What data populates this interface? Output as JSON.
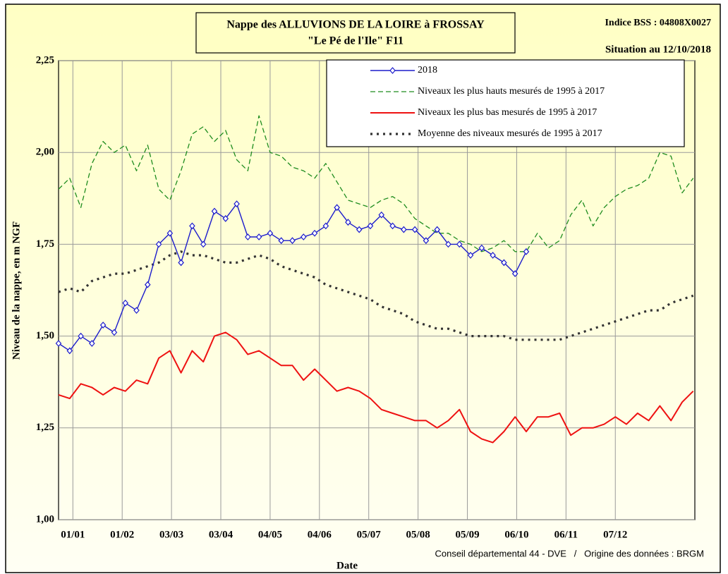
{
  "chart_data": {
    "type": "line",
    "title": "Nappe des ALLUVIONS DE LA LOIRE à FROSSAY",
    "subtitle": "\"Le Pé de l'Ile\" F11",
    "station_id": "Indice BSS : 04808X0027",
    "situation": "Situation au 12/10/2018",
    "y_label": "Niveau de la nappe, en m NGF",
    "x_label": "Date",
    "source": "Conseil départemental 44 - DVE   /   Origine des données : BRGM",
    "grid": true,
    "legend": "upper right",
    "xlim": [
      0,
      400
    ],
    "xticks": [
      {
        "value": 9,
        "label": "01/01"
      },
      {
        "value": 40,
        "label": "01/02"
      },
      {
        "value": 71,
        "label": "03/03"
      },
      {
        "value": 102,
        "label": "03/04"
      },
      {
        "value": 133,
        "label": "04/05"
      },
      {
        "value": 164,
        "label": "04/06"
      },
      {
        "value": 195,
        "label": "05/07"
      },
      {
        "value": 226,
        "label": "05/08"
      },
      {
        "value": 257,
        "label": "05/09"
      },
      {
        "value": 288,
        "label": "06/10"
      },
      {
        "value": 319,
        "label": "06/11"
      },
      {
        "value": 350,
        "label": "07/12"
      }
    ],
    "ylim": [
      1,
      2.25
    ],
    "yticks": [
      {
        "value": 1,
        "label": "1,00"
      },
      {
        "value": 1.25,
        "label": "1,25"
      },
      {
        "value": 1.5,
        "label": "1,50"
      },
      {
        "value": 1.75,
        "label": "1,75"
      },
      {
        "value": 2,
        "label": "2,00"
      },
      {
        "value": 2.25,
        "label": "2,25"
      }
    ],
    "x": [
      0,
      7,
      14,
      21,
      28,
      35,
      42,
      49,
      56,
      63,
      70,
      77,
      84,
      91,
      98,
      105,
      112,
      119,
      126,
      133,
      140,
      147,
      154,
      161,
      168,
      175,
      182,
      189,
      196,
      203,
      210,
      217,
      224,
      231,
      238,
      245,
      252,
      259,
      266,
      273,
      280,
      287,
      294,
      301,
      308,
      315,
      322,
      329,
      336,
      343,
      350,
      357,
      364,
      371,
      378,
      385,
      392,
      399
    ],
    "series": [
      {
        "name": "2018",
        "color": "#1c1ccc",
        "style": "solid",
        "marker": "diamond",
        "values": [
          1.48,
          1.46,
          1.5,
          1.48,
          1.53,
          1.51,
          1.59,
          1.57,
          1.64,
          1.75,
          1.78,
          1.7,
          1.8,
          1.75,
          1.84,
          1.82,
          1.86,
          1.77,
          1.77,
          1.78,
          1.76,
          1.76,
          1.77,
          1.78,
          1.8,
          1.85,
          1.81,
          1.79,
          1.8,
          1.83,
          1.8,
          1.79,
          1.79,
          1.76,
          1.79,
          1.75,
          1.75,
          1.72,
          1.74,
          1.72,
          1.7,
          1.67,
          1.73,
          null,
          null,
          null,
          null,
          null,
          null,
          null,
          null,
          null,
          null,
          null,
          null,
          null,
          null,
          null
        ]
      },
      {
        "name": "Niveaux les plus hauts mesurés de 1995 à 2017",
        "color": "#1e8c1e",
        "style": "dashed",
        "values": [
          1.9,
          1.93,
          1.85,
          1.97,
          2.03,
          2.0,
          2.02,
          1.95,
          2.02,
          1.9,
          1.87,
          1.95,
          2.05,
          2.07,
          2.03,
          2.06,
          1.98,
          1.95,
          2.1,
          2.0,
          1.99,
          1.96,
          1.95,
          1.93,
          1.97,
          1.92,
          1.87,
          1.86,
          1.85,
          1.87,
          1.88,
          1.86,
          1.82,
          1.8,
          1.78,
          1.78,
          1.76,
          1.75,
          1.73,
          1.74,
          1.76,
          1.73,
          1.73,
          1.78,
          1.74,
          1.76,
          1.83,
          1.87,
          1.8,
          1.85,
          1.88,
          1.9,
          1.91,
          1.93,
          2.0,
          1.99,
          1.89,
          1.93
        ]
      },
      {
        "name": "Niveaux les plus bas mesurés de 1995 à 2017",
        "color": "#ee1111",
        "style": "solid",
        "values": [
          1.34,
          1.33,
          1.37,
          1.36,
          1.34,
          1.36,
          1.35,
          1.38,
          1.37,
          1.44,
          1.46,
          1.4,
          1.46,
          1.43,
          1.5,
          1.51,
          1.49,
          1.45,
          1.46,
          1.44,
          1.42,
          1.42,
          1.38,
          1.41,
          1.38,
          1.35,
          1.36,
          1.35,
          1.33,
          1.3,
          1.29,
          1.28,
          1.27,
          1.27,
          1.25,
          1.27,
          1.3,
          1.24,
          1.22,
          1.21,
          1.24,
          1.28,
          1.24,
          1.28,
          1.28,
          1.29,
          1.23,
          1.25,
          1.25,
          1.26,
          1.28,
          1.26,
          1.29,
          1.27,
          1.31,
          1.27,
          1.32,
          1.35
        ]
      },
      {
        "name": "Moyenne des niveaux mesurés de 1995 à 2017",
        "color": "#333333",
        "style": "dotted",
        "values": [
          1.62,
          1.63,
          1.62,
          1.65,
          1.66,
          1.67,
          1.67,
          1.68,
          1.69,
          1.7,
          1.72,
          1.73,
          1.72,
          1.72,
          1.71,
          1.7,
          1.7,
          1.71,
          1.72,
          1.71,
          1.69,
          1.68,
          1.67,
          1.66,
          1.64,
          1.63,
          1.62,
          1.61,
          1.6,
          1.58,
          1.57,
          1.56,
          1.54,
          1.53,
          1.52,
          1.52,
          1.51,
          1.5,
          1.5,
          1.5,
          1.5,
          1.49,
          1.49,
          1.49,
          1.49,
          1.49,
          1.5,
          1.51,
          1.52,
          1.53,
          1.54,
          1.55,
          1.56,
          1.57,
          1.57,
          1.59,
          1.6,
          1.61
        ]
      }
    ]
  }
}
